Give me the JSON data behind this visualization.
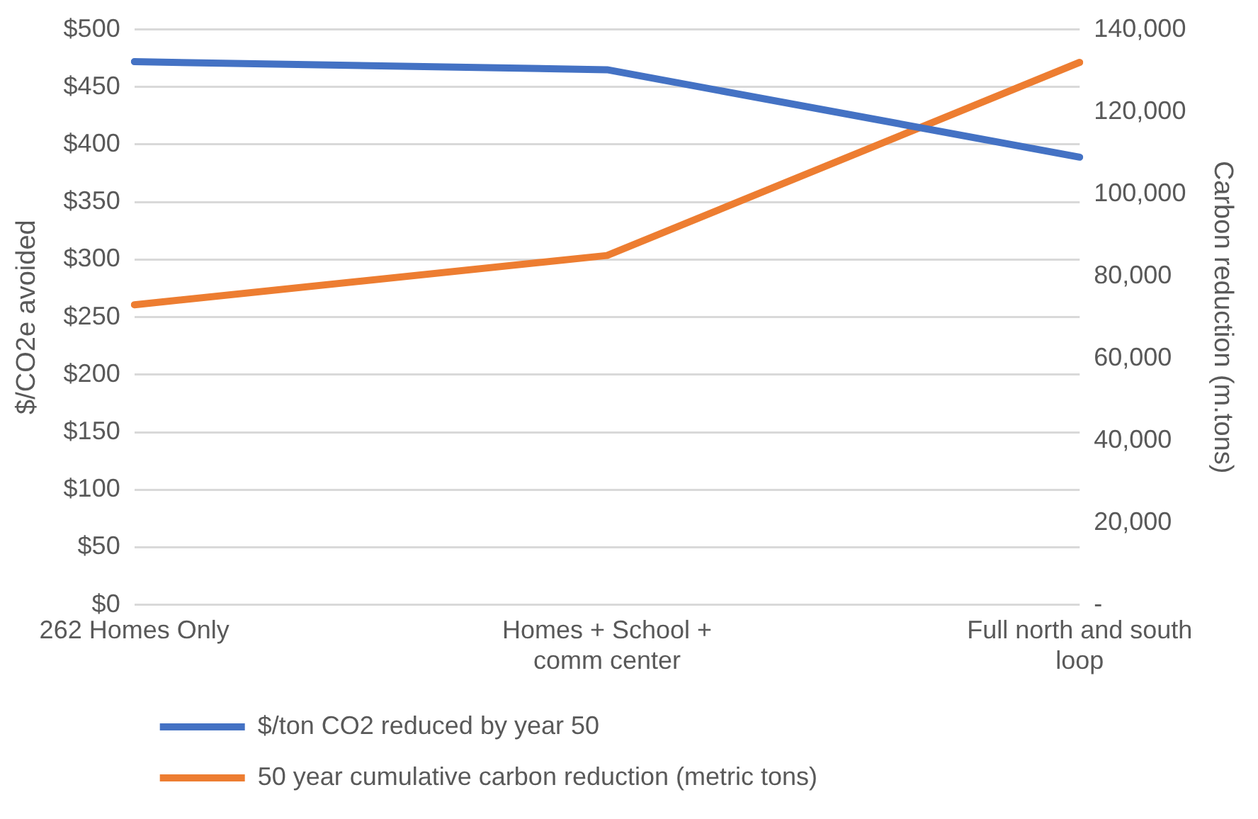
{
  "chart_data": {
    "type": "line",
    "categories": [
      "262 Homes Only",
      "Homes + School + comm center",
      "Full north and south loop"
    ],
    "series": [
      {
        "name": "$/ton CO2 reduced by year 50",
        "color": "#4472c4",
        "values": [
          472,
          465,
          389
        ]
      },
      {
        "name": "50 year cumulative carbon reduction (metric tons)",
        "color": "#ed7d31",
        "values": [
          73000,
          85000,
          132000
        ],
        "axis": "y2"
      }
    ],
    "ylabel": "$/CO2e avoided",
    "y2label": "Carbon reduction (m.tons)",
    "ylim": [
      0,
      500
    ],
    "yticks": [
      {
        "value": 0,
        "label": "$0"
      },
      {
        "value": 50,
        "label": "$50"
      },
      {
        "value": 100,
        "label": "$100"
      },
      {
        "value": 150,
        "label": "$150"
      },
      {
        "value": 200,
        "label": "$200"
      },
      {
        "value": 250,
        "label": "$250"
      },
      {
        "value": 300,
        "label": "$300"
      },
      {
        "value": 350,
        "label": "$350"
      },
      {
        "value": 400,
        "label": "$400"
      },
      {
        "value": 450,
        "label": "$450"
      },
      {
        "value": 500,
        "label": "$500"
      }
    ],
    "y2lim": [
      0,
      140000
    ],
    "y2ticks": [
      {
        "value": 0,
        "label": "-"
      },
      {
        "value": 20000,
        "label": "20,000"
      },
      {
        "value": 40000,
        "label": "40,000"
      },
      {
        "value": 60000,
        "label": "60,000"
      },
      {
        "value": 80000,
        "label": "80,000"
      },
      {
        "value": 100000,
        "label": "100,000"
      },
      {
        "value": 120000,
        "label": "120,000"
      },
      {
        "value": 140000,
        "label": "140,000"
      }
    ],
    "grid": "y",
    "legend": "bottom",
    "marker": "none",
    "line_style": "solid"
  }
}
